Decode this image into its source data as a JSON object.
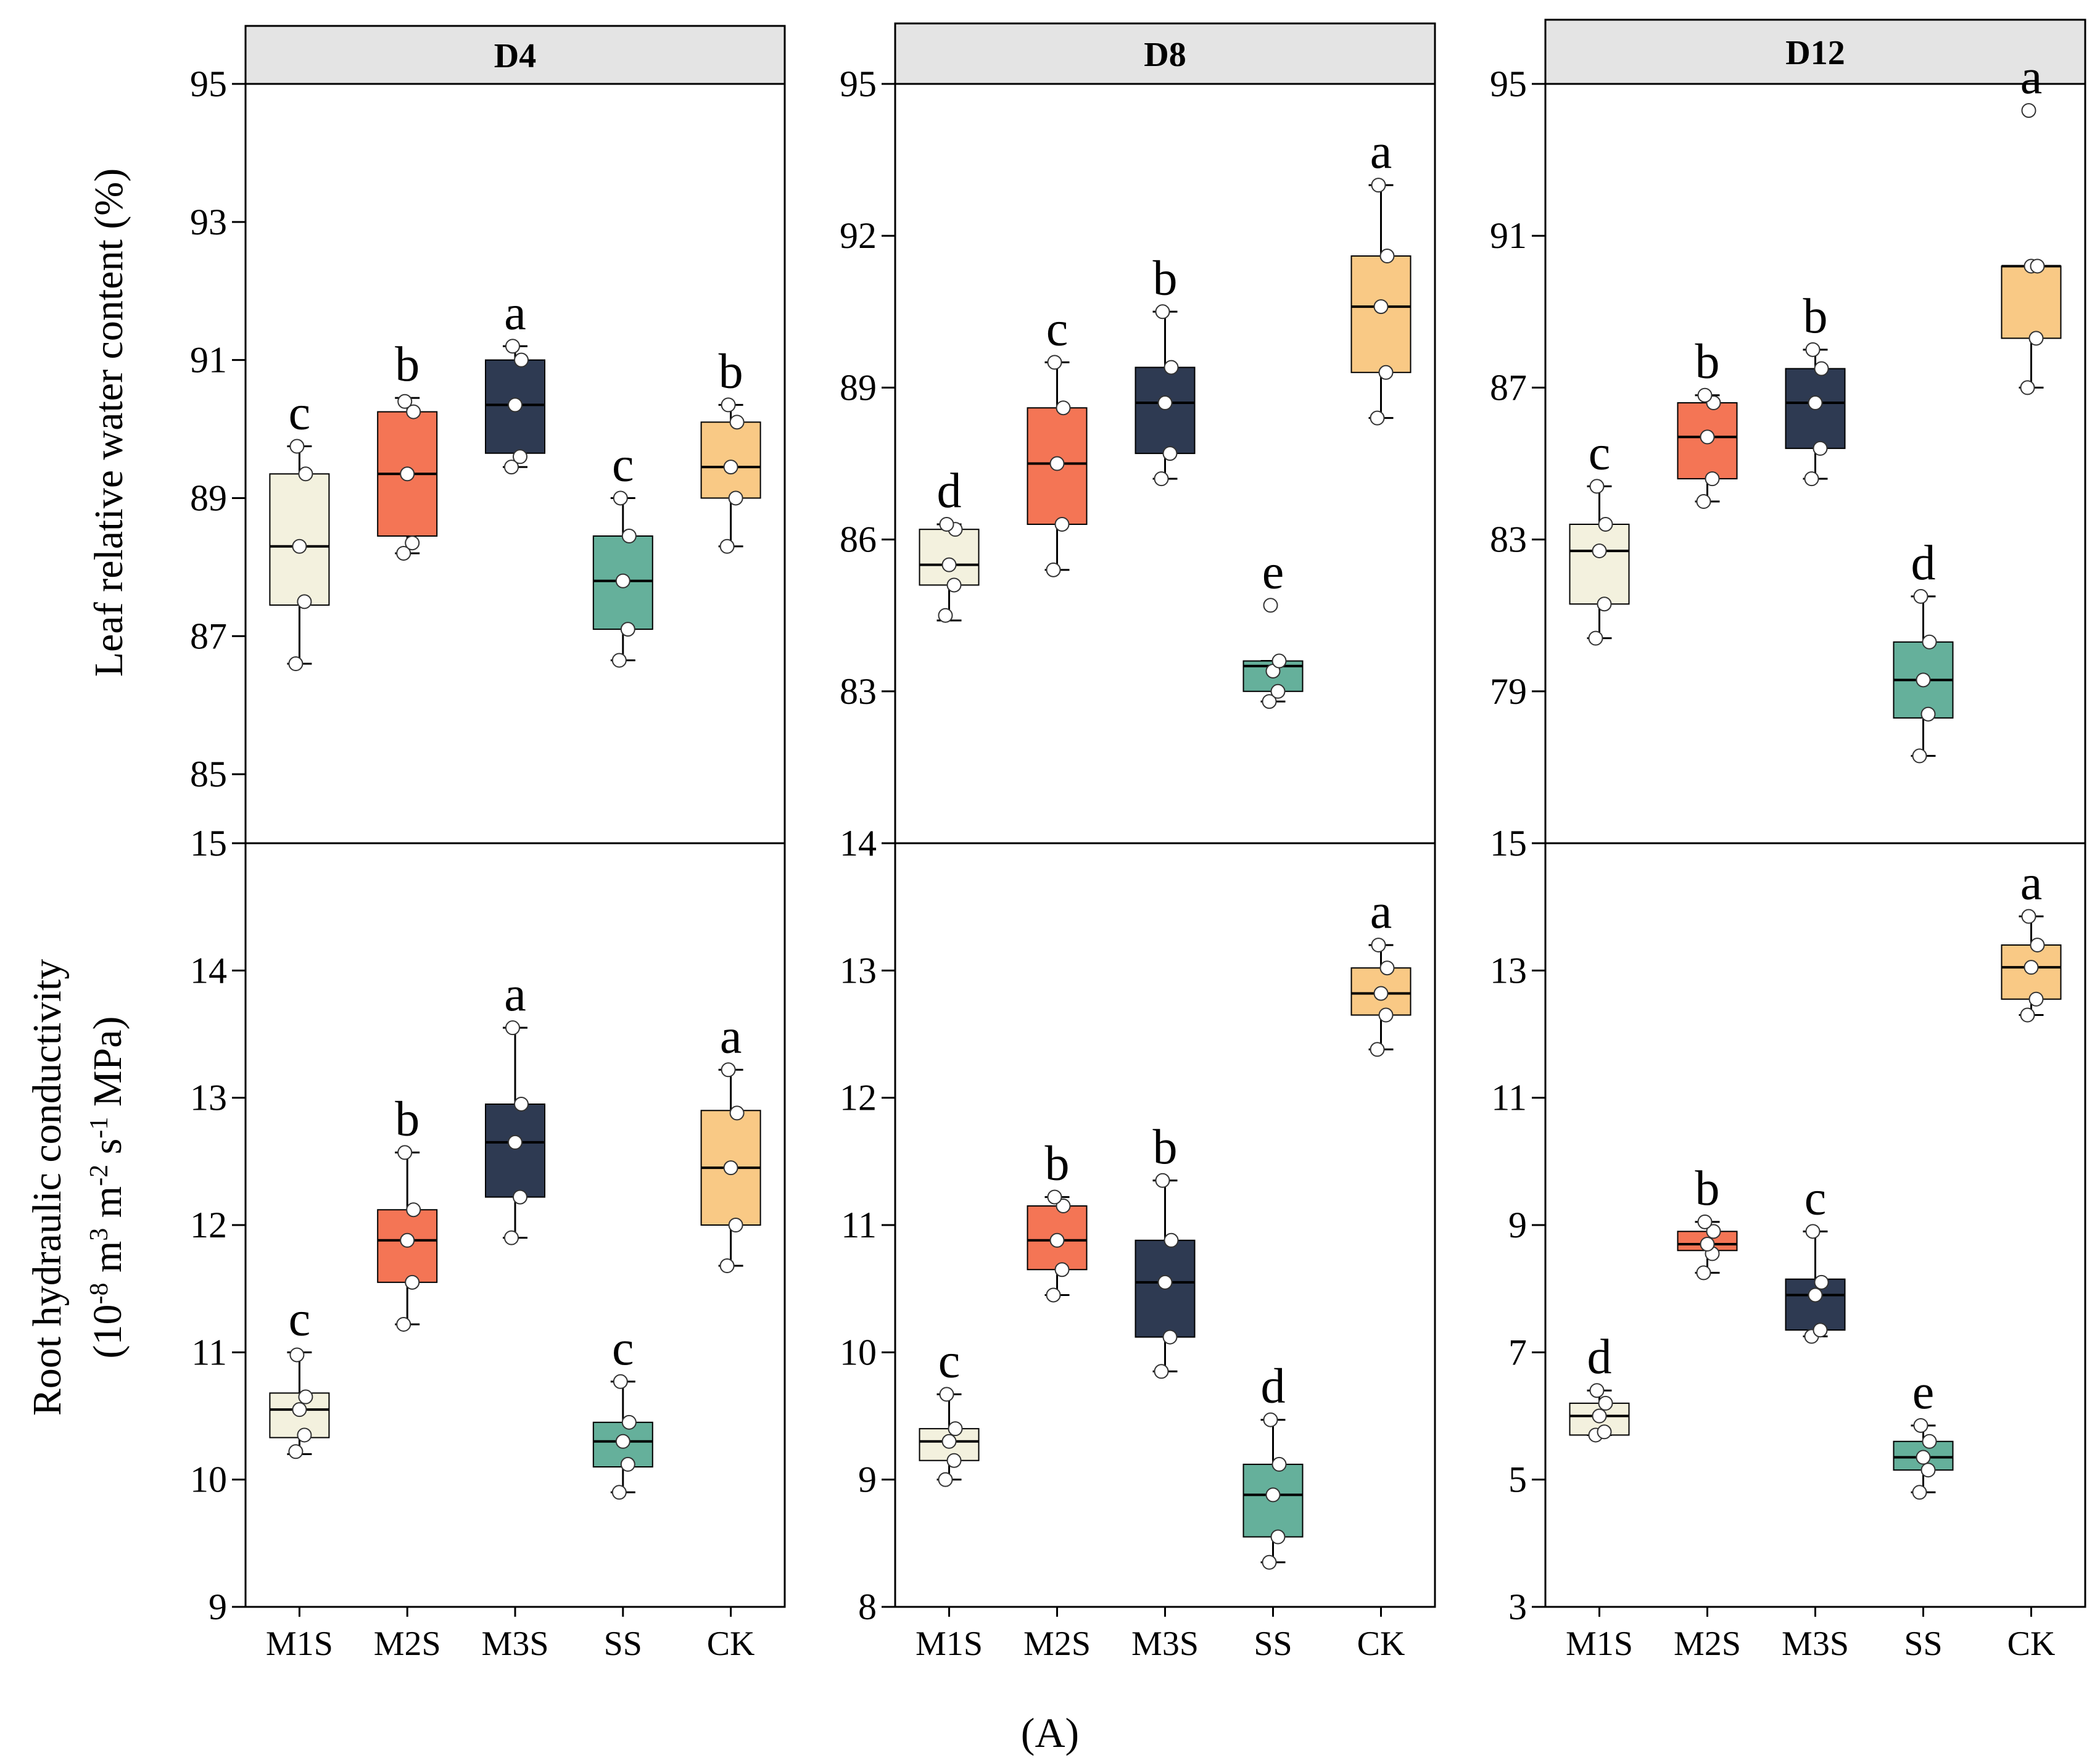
{
  "figure_caption": "(A)",
  "colors": {
    "M1S": "#f3f1de",
    "M2S": "#f47555",
    "M3S": "#2e3a52",
    "SS": "#65b09b",
    "CK": "#f9c985",
    "strip_bg": "#e4e4e4"
  },
  "chart_data": [
    {
      "type": "box",
      "panel": "D4",
      "ylabel": "Leaf relative water content (%)",
      "yticks": [
        "85",
        "87",
        "89",
        "91",
        "93",
        "95"
      ],
      "ylim": [
        84,
        95
      ],
      "categories": [
        "M1S",
        "M2S",
        "M3S",
        "SS",
        "CK"
      ],
      "boxes": [
        {
          "name": "M1S",
          "min": 86.6,
          "q1": 87.45,
          "median": 88.3,
          "q3": 89.35,
          "max": 89.75,
          "points": [
            86.6,
            87.5,
            88.3,
            89.35,
            89.75
          ],
          "letter": "c"
        },
        {
          "name": "M2S",
          "min": 88.2,
          "q1": 88.45,
          "median": 89.35,
          "q3": 90.25,
          "max": 90.45,
          "points": [
            88.2,
            88.35,
            89.35,
            90.25,
            90.4
          ],
          "letter": "b"
        },
        {
          "name": "M3S",
          "min": 89.45,
          "q1": 89.65,
          "median": 90.35,
          "q3": 91.0,
          "max": 91.2,
          "points": [
            89.45,
            89.6,
            90.35,
            91.0,
            91.2
          ],
          "letter": "a"
        },
        {
          "name": "SS",
          "min": 86.65,
          "q1": 87.1,
          "median": 87.8,
          "q3": 88.45,
          "max": 89.0,
          "points": [
            86.65,
            87.1,
            87.8,
            88.45,
            89.0
          ],
          "letter": "c"
        },
        {
          "name": "CK",
          "min": 88.3,
          "q1": 89.0,
          "median": 89.45,
          "q3": 90.1,
          "max": 90.35,
          "points": [
            88.3,
            89.0,
            89.45,
            90.1,
            90.35
          ],
          "letter": "b"
        }
      ]
    },
    {
      "type": "box",
      "panel": "D8",
      "yticks": [
        "83",
        "86",
        "89",
        "92",
        "95"
      ],
      "ylim": [
        80,
        95
      ],
      "categories": [
        "M1S",
        "M2S",
        "M3S",
        "SS",
        "CK"
      ],
      "boxes": [
        {
          "name": "M1S",
          "min": 84.4,
          "q1": 85.1,
          "median": 85.5,
          "q3": 86.2,
          "max": 86.3,
          "points": [
            84.5,
            85.1,
            85.5,
            86.2,
            86.3
          ],
          "letter": "d"
        },
        {
          "name": "M2S",
          "min": 85.4,
          "q1": 86.3,
          "median": 87.5,
          "q3": 88.6,
          "max": 89.5,
          "points": [
            85.4,
            86.3,
            87.5,
            88.6,
            89.5
          ],
          "letter": "c"
        },
        {
          "name": "M3S",
          "min": 87.2,
          "q1": 87.7,
          "median": 88.7,
          "q3": 89.4,
          "max": 90.5,
          "points": [
            87.2,
            87.7,
            88.7,
            89.4,
            90.5
          ],
          "letter": "b"
        },
        {
          "name": "SS",
          "min": 82.8,
          "q1": 83.0,
          "median": 83.5,
          "q3": 83.6,
          "max": 83.6,
          "points": [
            82.8,
            83.0,
            83.4,
            83.6,
            84.7
          ],
          "letter": "e"
        },
        {
          "name": "CK",
          "min": 88.4,
          "q1": 89.3,
          "median": 90.6,
          "q3": 91.6,
          "max": 93.0,
          "points": [
            88.4,
            89.3,
            90.6,
            91.6,
            93.0
          ],
          "letter": "a"
        }
      ]
    },
    {
      "type": "box",
      "panel": "D12",
      "yticks": [
        "79",
        "83",
        "87",
        "91",
        "95"
      ],
      "ylim": [
        75,
        95
      ],
      "categories": [
        "M1S",
        "M2S",
        "M3S",
        "SS",
        "CK"
      ],
      "boxes": [
        {
          "name": "M1S",
          "min": 80.4,
          "q1": 81.3,
          "median": 82.7,
          "q3": 83.4,
          "max": 84.4,
          "points": [
            80.4,
            81.3,
            82.7,
            83.4,
            84.4
          ],
          "letter": "c"
        },
        {
          "name": "M2S",
          "min": 84.0,
          "q1": 84.6,
          "median": 85.7,
          "q3": 86.6,
          "max": 86.8,
          "points": [
            84.0,
            84.6,
            85.7,
            86.6,
            86.8
          ],
          "letter": "b"
        },
        {
          "name": "M3S",
          "min": 84.6,
          "q1": 85.4,
          "median": 86.6,
          "q3": 87.5,
          "max": 88.0,
          "points": [
            84.6,
            85.4,
            86.6,
            87.5,
            88.0
          ],
          "letter": "b"
        },
        {
          "name": "SS",
          "min": 77.3,
          "q1": 78.3,
          "median": 79.3,
          "q3": 80.3,
          "max": 81.5,
          "points": [
            77.3,
            78.4,
            79.3,
            80.3,
            81.5
          ],
          "letter": "d"
        },
        {
          "name": "CK",
          "min": 87.0,
          "q1": 88.3,
          "median": 90.2,
          "q3": 90.2,
          "max": 90.2,
          "points": [
            87.0,
            88.3,
            90.2,
            90.2,
            94.3
          ],
          "letter": "a"
        }
      ]
    },
    {
      "type": "box",
      "panel": "D4",
      "ylabel_line1": "Root hydraulic conductivity",
      "ylabel_line2": "(10-8 m3 m-2 s-1 MPa)",
      "yticks": [
        "9",
        "10",
        "11",
        "12",
        "13",
        "14",
        "15"
      ],
      "ylim": [
        9,
        15
      ],
      "categories": [
        "M1S",
        "M2S",
        "M3S",
        "SS",
        "CK"
      ],
      "boxes": [
        {
          "name": "M1S",
          "min": 10.2,
          "q1": 10.33,
          "median": 10.55,
          "q3": 10.68,
          "max": 11.0,
          "points": [
            10.22,
            10.35,
            10.55,
            10.65,
            10.98
          ],
          "letter": "c"
        },
        {
          "name": "M2S",
          "min": 11.22,
          "q1": 11.55,
          "median": 11.88,
          "q3": 12.12,
          "max": 12.57,
          "points": [
            11.22,
            11.55,
            11.88,
            12.12,
            12.57
          ],
          "letter": "b"
        },
        {
          "name": "M3S",
          "min": 11.9,
          "q1": 12.22,
          "median": 12.65,
          "q3": 12.95,
          "max": 13.55,
          "points": [
            11.9,
            12.22,
            12.65,
            12.95,
            13.55
          ],
          "letter": "a"
        },
        {
          "name": "SS",
          "min": 9.9,
          "q1": 10.1,
          "median": 10.3,
          "q3": 10.45,
          "max": 10.77,
          "points": [
            9.9,
            10.12,
            10.3,
            10.45,
            10.77
          ],
          "letter": "c"
        },
        {
          "name": "CK",
          "min": 11.68,
          "q1": 12.0,
          "median": 12.45,
          "q3": 12.9,
          "max": 13.22,
          "points": [
            11.68,
            12.0,
            12.45,
            12.88,
            13.22
          ],
          "letter": "a"
        }
      ]
    },
    {
      "type": "box",
      "panel": "D8",
      "yticks": [
        "8",
        "9",
        "10",
        "11",
        "12",
        "13",
        "14"
      ],
      "ylim": [
        8,
        14
      ],
      "categories": [
        "M1S",
        "M2S",
        "M3S",
        "SS",
        "CK"
      ],
      "boxes": [
        {
          "name": "M1S",
          "min": 9.0,
          "q1": 9.15,
          "median": 9.3,
          "q3": 9.4,
          "max": 9.67,
          "points": [
            9.0,
            9.15,
            9.3,
            9.4,
            9.67
          ],
          "letter": "c"
        },
        {
          "name": "M2S",
          "min": 10.45,
          "q1": 10.65,
          "median": 10.88,
          "q3": 11.15,
          "max": 11.22,
          "points": [
            10.45,
            10.65,
            10.88,
            11.15,
            11.22
          ],
          "letter": "b"
        },
        {
          "name": "M3S",
          "min": 9.85,
          "q1": 10.12,
          "median": 10.55,
          "q3": 10.88,
          "max": 11.35,
          "points": [
            9.85,
            10.12,
            10.55,
            10.88,
            11.35
          ],
          "letter": "b"
        },
        {
          "name": "SS",
          "min": 8.35,
          "q1": 8.55,
          "median": 8.88,
          "q3": 9.12,
          "max": 9.47,
          "points": [
            8.35,
            8.55,
            8.88,
            9.12,
            9.47
          ],
          "letter": "d"
        },
        {
          "name": "CK",
          "min": 12.38,
          "q1": 12.65,
          "median": 12.82,
          "q3": 13.02,
          "max": 13.2,
          "points": [
            12.38,
            12.65,
            12.82,
            13.02,
            13.2
          ],
          "letter": "a"
        }
      ]
    },
    {
      "type": "box",
      "panel": "D12",
      "yticks": [
        "3",
        "5",
        "7",
        "9",
        "11",
        "13",
        "15"
      ],
      "ylim": [
        3,
        15
      ],
      "categories": [
        "M1S",
        "M2S",
        "M3S",
        "SS",
        "CK"
      ],
      "boxes": [
        {
          "name": "M1S",
          "min": 5.7,
          "q1": 5.7,
          "median": 6.0,
          "q3": 6.2,
          "max": 6.4,
          "points": [
            5.7,
            5.75,
            6.0,
            6.2,
            6.4
          ],
          "letter": "d"
        },
        {
          "name": "M2S",
          "min": 8.25,
          "q1": 8.6,
          "median": 8.7,
          "q3": 8.9,
          "max": 9.05,
          "points": [
            8.25,
            8.55,
            8.7,
            8.9,
            9.05
          ],
          "letter": "b"
        },
        {
          "name": "M3S",
          "min": 7.25,
          "q1": 7.35,
          "median": 7.9,
          "q3": 8.15,
          "max": 8.9,
          "points": [
            7.25,
            7.35,
            7.9,
            8.1,
            8.9
          ],
          "letter": "c"
        },
        {
          "name": "SS",
          "min": 4.8,
          "q1": 5.15,
          "median": 5.35,
          "q3": 5.6,
          "max": 5.85,
          "points": [
            4.8,
            5.15,
            5.35,
            5.6,
            5.85
          ],
          "letter": "e"
        },
        {
          "name": "CK",
          "min": 12.3,
          "q1": 12.55,
          "median": 13.05,
          "q3": 13.4,
          "max": 13.85,
          "points": [
            12.3,
            12.55,
            13.05,
            13.4,
            13.85
          ],
          "letter": "a"
        }
      ]
    }
  ]
}
